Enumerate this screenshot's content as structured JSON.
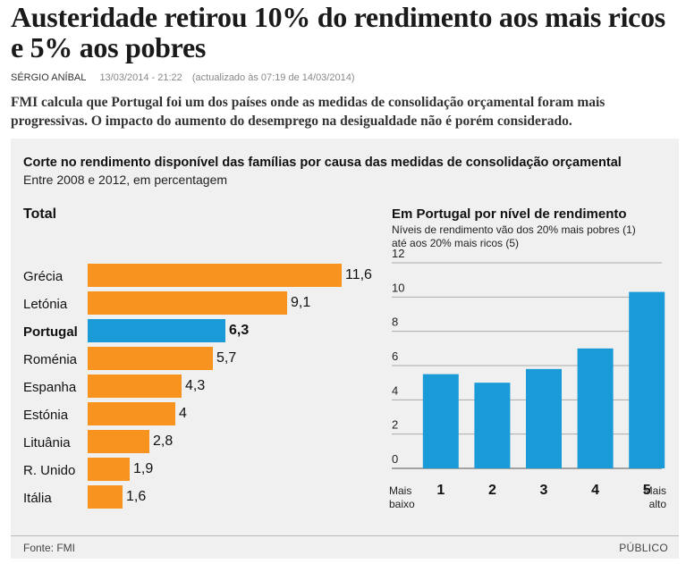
{
  "article": {
    "headline": "Austeridade retirou 10% do rendimento aos mais ricos e 5% aos pobres",
    "author": "SÉRGIO ANÍBAL",
    "date": "13/03/2014 - 21:22",
    "updated": "(actualizado às 07:19 de 14/03/2014)",
    "lede": "FMI calcula que Portugal foi um dos países onde as medidas de consolidação orçamental foram mais progressivas. O impacto do aumento do desemprego na desigualdade não é porém considerado."
  },
  "infographic": {
    "title": "Corte no rendimento disponível das famílias por causa das medidas de consolidação orçamental",
    "subtitle": "Entre 2008 e 2012, em percentagem",
    "source": "Fonte: FMI",
    "brand": "PÚBLICO",
    "colors": {
      "bar": "#f7931e",
      "highlight": "#1a9ad6",
      "panel": "#f0f0f0"
    }
  },
  "chart_data": [
    {
      "type": "bar",
      "orientation": "horizontal",
      "title": "Total",
      "categories": [
        "Grécia",
        "Letónia",
        "Portugal",
        "Roménia",
        "Espanha",
        "Estónia",
        "Lituânia",
        "R. Unido",
        "Itália"
      ],
      "values": [
        11.6,
        9.1,
        6.3,
        5.7,
        4.3,
        4,
        2.8,
        1.9,
        1.6
      ],
      "value_labels": [
        "11,6",
        "9,1",
        "6,3",
        "5,7",
        "4,3",
        "4",
        "2,8",
        "1,9",
        "1,6"
      ],
      "highlight": "Portugal",
      "xlim": [
        0,
        11.6
      ]
    },
    {
      "type": "bar",
      "orientation": "vertical",
      "title": "Em Portugal por nível de rendimento",
      "subtitle": "Níveis de rendimento vão dos 20% mais pobres (1) até aos 20% mais ricos (5)",
      "categories": [
        "1",
        "2",
        "3",
        "4",
        "5"
      ],
      "values": [
        5.5,
        5.0,
        5.8,
        7.0,
        10.3
      ],
      "ylim": [
        0,
        12
      ],
      "yticks": [
        0,
        2,
        4,
        6,
        8,
        10,
        12
      ],
      "grid": true,
      "x_end_labels": {
        "left": "Mais baixo",
        "right": "Mais alto"
      }
    }
  ]
}
